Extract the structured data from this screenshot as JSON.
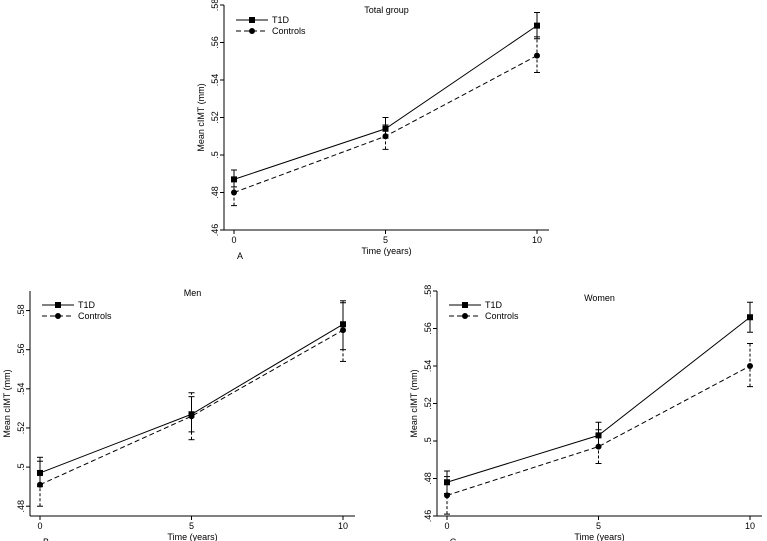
{
  "chart_data": [
    {
      "type": "line",
      "panel_label": "A",
      "title": "Total group",
      "xlabel": "Time (years)",
      "ylabel": "Mean cIMT (mm)",
      "x": [
        0,
        5,
        10
      ],
      "x_ticks": [
        "0",
        "5",
        "10"
      ],
      "ylim": [
        0.46,
        0.58
      ],
      "y_ticks": [
        0.46,
        0.48,
        0.5,
        0.52,
        0.54,
        0.56,
        0.58
      ],
      "y_tick_labels": [
        ".46",
        ".48",
        ".5",
        ".52",
        ".54",
        ".56",
        ".58"
      ],
      "legend_position": "top-left",
      "series": [
        {
          "name": "T1D",
          "style": "solid",
          "marker": "square",
          "values": [
            0.487,
            0.514,
            0.569
          ],
          "ci_low": [
            0.483,
            0.509,
            0.562
          ],
          "ci_high": [
            0.492,
            0.52,
            0.576
          ]
        },
        {
          "name": "Controls",
          "style": "dashed",
          "marker": "circle",
          "values": [
            0.48,
            0.51,
            0.553
          ],
          "ci_low": [
            0.473,
            0.503,
            0.544
          ],
          "ci_high": [
            0.486,
            0.516,
            0.563
          ]
        }
      ]
    },
    {
      "type": "line",
      "panel_label": "B",
      "title": "Men",
      "xlabel": "Time (years)",
      "ylabel": "Mean cIMT (mm)",
      "x": [
        0,
        5,
        10
      ],
      "x_ticks": [
        "0",
        "5",
        "10"
      ],
      "ylim": [
        0.475,
        0.59
      ],
      "y_ticks": [
        0.48,
        0.5,
        0.52,
        0.54,
        0.56,
        0.58
      ],
      "y_tick_labels": [
        ".48",
        ".5",
        ".52",
        ".54",
        ".56",
        ".58"
      ],
      "legend_position": "top-left",
      "series": [
        {
          "name": "T1D",
          "style": "solid",
          "marker": "square",
          "values": [
            0.497,
            0.527,
            0.573
          ],
          "ci_low": [
            0.49,
            0.518,
            0.56
          ],
          "ci_high": [
            0.505,
            0.536,
            0.585
          ]
        },
        {
          "name": "Controls",
          "style": "dashed",
          "marker": "circle",
          "values": [
            0.491,
            0.526,
            0.57
          ],
          "ci_low": [
            0.48,
            0.514,
            0.554
          ],
          "ci_high": [
            0.503,
            0.538,
            0.584
          ]
        }
      ]
    },
    {
      "type": "line",
      "panel_label": "C",
      "title": "Women",
      "xlabel": "Time (years)",
      "ylabel": "Mean cIMT (mm)",
      "x": [
        0,
        5,
        10
      ],
      "x_ticks": [
        "0",
        "5",
        "10"
      ],
      "ylim": [
        0.46,
        0.58
      ],
      "y_ticks": [
        0.46,
        0.48,
        0.5,
        0.52,
        0.54,
        0.56,
        0.58
      ],
      "y_tick_labels": [
        ".46",
        ".48",
        ".5",
        ".52",
        ".54",
        ".56",
        ".58"
      ],
      "legend_position": "top-left",
      "series": [
        {
          "name": "T1D",
          "style": "solid",
          "marker": "square",
          "values": [
            0.478,
            0.503,
            0.566
          ],
          "ci_low": [
            0.472,
            0.497,
            0.558
          ],
          "ci_high": [
            0.484,
            0.51,
            0.574
          ]
        },
        {
          "name": "Controls",
          "style": "dashed",
          "marker": "circle",
          "values": [
            0.471,
            0.497,
            0.54
          ],
          "ci_low": [
            0.461,
            0.488,
            0.529
          ],
          "ci_high": [
            0.481,
            0.506,
            0.552
          ]
        }
      ]
    }
  ]
}
